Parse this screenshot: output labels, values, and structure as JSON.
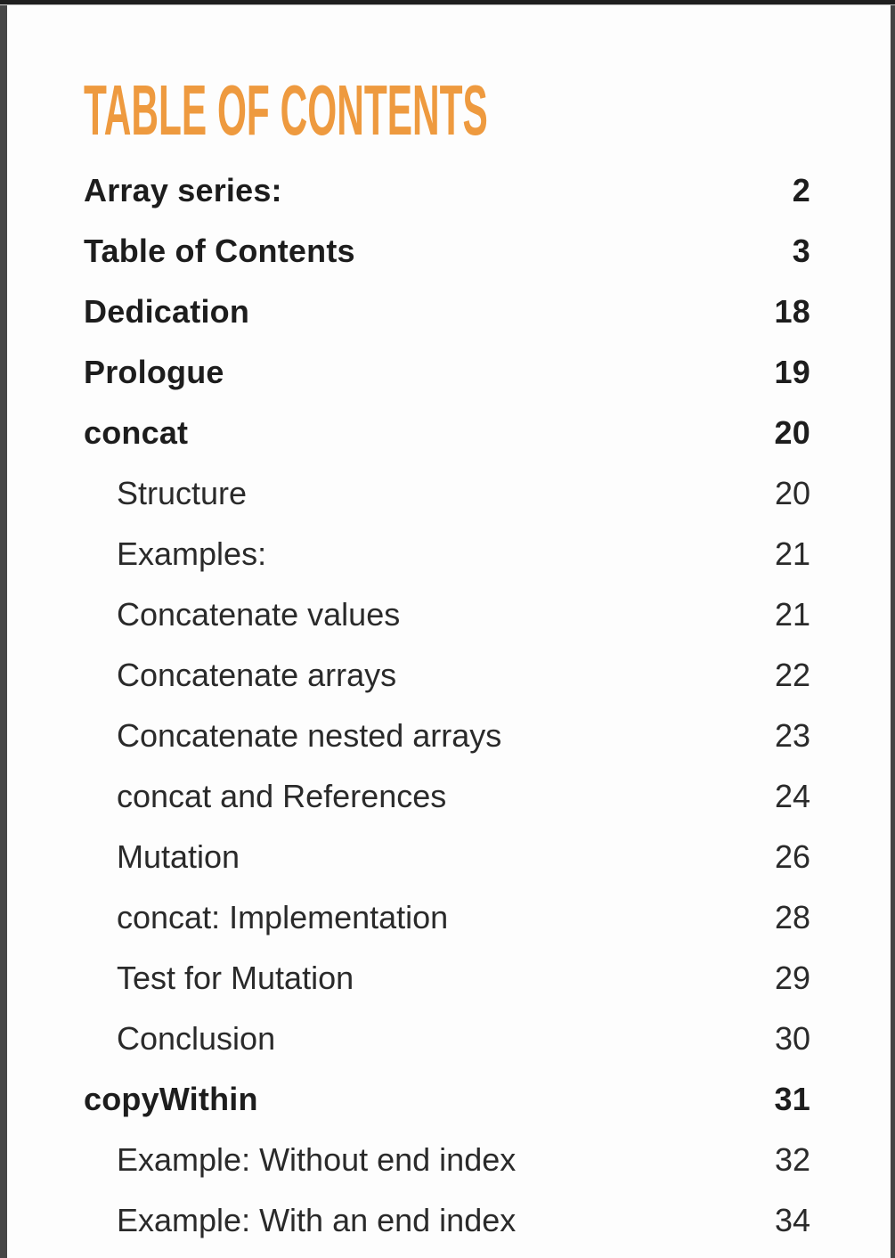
{
  "document": {
    "accent_color": "#EE9A3F",
    "text_color": "#1D1D1D",
    "title": "TABLE OF CONTENTS",
    "toc": {
      "entries": [
        {
          "label": "Array series:",
          "page": "2",
          "level": 0,
          "bold": true
        },
        {
          "label": "Table of Contents",
          "page": "3",
          "level": 0,
          "bold": true
        },
        {
          "label": "Dedication",
          "page": "18",
          "level": 0,
          "bold": true
        },
        {
          "label": "Prologue",
          "page": "19",
          "level": 0,
          "bold": true
        },
        {
          "label": "concat",
          "page": "20",
          "level": 0,
          "bold": true
        },
        {
          "label": "Structure",
          "page": "20",
          "level": 1,
          "bold": false
        },
        {
          "label": "Examples:",
          "page": "21",
          "level": 1,
          "bold": false
        },
        {
          "label": "Concatenate values",
          "page": "21",
          "level": 1,
          "bold": false
        },
        {
          "label": "Concatenate arrays",
          "page": "22",
          "level": 1,
          "bold": false
        },
        {
          "label": "Concatenate nested arrays",
          "page": "23",
          "level": 1,
          "bold": false
        },
        {
          "label": "concat and References",
          "page": "24",
          "level": 1,
          "bold": false
        },
        {
          "label": "Mutation",
          "page": "26",
          "level": 1,
          "bold": false
        },
        {
          "label": "concat: Implementation",
          "page": "28",
          "level": 1,
          "bold": false
        },
        {
          "label": "Test for Mutation",
          "page": "29",
          "level": 1,
          "bold": false
        },
        {
          "label": "Conclusion",
          "page": "30",
          "level": 1,
          "bold": false
        },
        {
          "label": "copyWithin",
          "page": "31",
          "level": 0,
          "bold": true
        },
        {
          "label": "Example: Without end index",
          "page": "32",
          "level": 1,
          "bold": false
        },
        {
          "label": "Example: With an end index",
          "page": "34",
          "level": 1,
          "bold": false
        }
      ]
    }
  }
}
